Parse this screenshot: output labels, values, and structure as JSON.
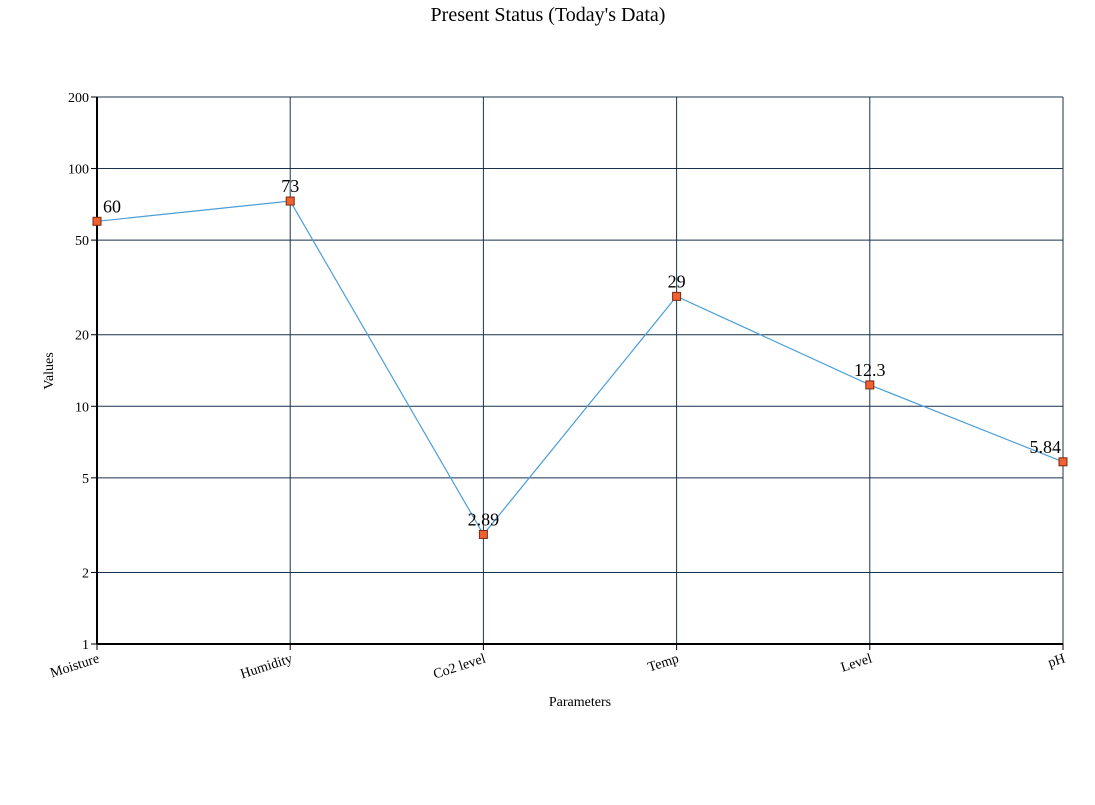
{
  "chart_data": {
    "type": "line",
    "title": "Present Status (Today's Data)",
    "xlabel": "Parameters",
    "ylabel": "Values",
    "categories": [
      "Moisture",
      "Humidity",
      "Co2 level",
      "Temp",
      "Level",
      "pH"
    ],
    "series": [
      {
        "values": [
          60,
          73,
          2.89,
          29,
          12.3,
          5.84
        ],
        "data_labels": [
          "60",
          "73",
          "2.89",
          "29",
          "12.3",
          "5.84"
        ],
        "color": "#4a9fd8",
        "marker_fill": "#f06030",
        "marker_stroke": "#7a2a10"
      }
    ],
    "y_scale": "log",
    "ylim": [
      1,
      200
    ],
    "y_ticks": [
      1,
      2,
      5,
      10,
      20,
      50,
      100,
      200
    ],
    "y_tick_labels": [
      "1",
      "2",
      "5",
      "10",
      "20",
      "50",
      "100",
      "200"
    ],
    "grid": true,
    "legend": "none"
  }
}
